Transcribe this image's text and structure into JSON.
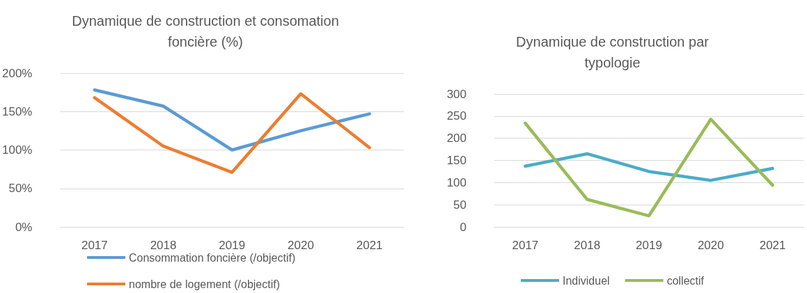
{
  "chart_data": [
    {
      "type": "line",
      "title": "Dynamique de construction et consomation\nfoncière (%)",
      "categories": [
        "2017",
        "2018",
        "2019",
        "2020",
        "2021"
      ],
      "series": [
        {
          "name": "Consommation foncière (/objectif)",
          "color": "#5b9bd5",
          "values": [
            178,
            157,
            100,
            125,
            147
          ]
        },
        {
          "name": "nombre de logement (/objectif)",
          "color": "#ed7d31",
          "values": [
            168,
            105,
            71,
            173,
            103
          ]
        }
      ],
      "ylim": [
        0,
        200
      ],
      "yticks": [
        {
          "value": 0,
          "label": "0%"
        },
        {
          "value": 50,
          "label": "50%"
        },
        {
          "value": 100,
          "label": "100%"
        },
        {
          "value": 150,
          "label": "150%"
        },
        {
          "value": 200,
          "label": "200%"
        }
      ],
      "grid": "y",
      "legend": "bottom",
      "marker": "none",
      "line_style": "solid"
    },
    {
      "type": "line",
      "title": "Dynamique de construction par\ntypologie",
      "categories": [
        "2017",
        "2018",
        "2019",
        "2020",
        "2021"
      ],
      "series": [
        {
          "name": "Individuel",
          "color": "#4bacc6",
          "values": [
            137,
            165,
            125,
            105,
            132
          ]
        },
        {
          "name": "collectif",
          "color": "#9bbb59",
          "values": [
            234,
            62,
            25,
            243,
            94
          ]
        }
      ],
      "ylim": [
        0,
        300
      ],
      "yticks": [
        0,
        50,
        100,
        150,
        200,
        250,
        300
      ],
      "grid": "y",
      "legend": "bottom",
      "marker": "none",
      "line_style": "solid"
    }
  ]
}
